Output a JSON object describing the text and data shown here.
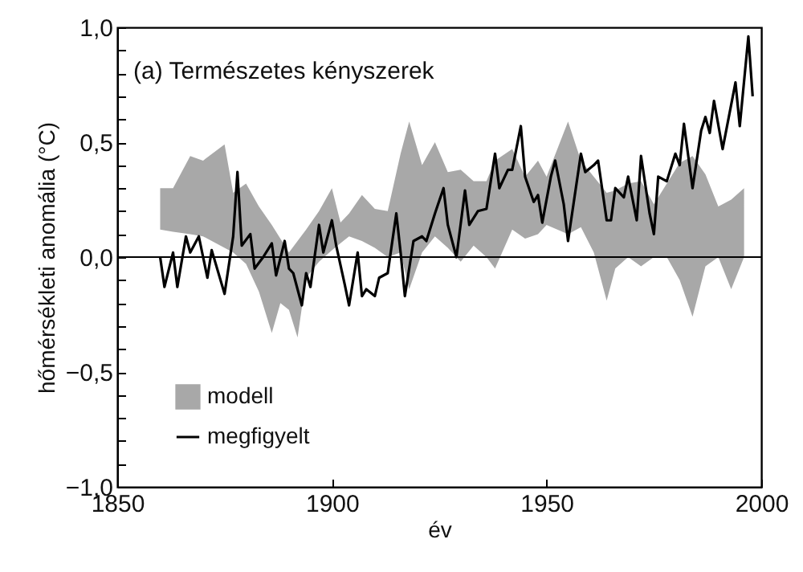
{
  "chart_data": {
    "type": "line",
    "title": "(a) Természetes kényszerek",
    "xlabel": "év",
    "ylabel": "hőmérsékleti anomália (°C)",
    "xlim": [
      1850,
      2000
    ],
    "xticks": [
      1850,
      1900,
      1950,
      2000
    ],
    "ylim": [
      -1,
      1
    ],
    "yticks": [
      {
        "value": -1,
        "label": "−1,0"
      },
      {
        "value": -0.9,
        "label": null
      },
      {
        "value": -0.8,
        "label": null
      },
      {
        "value": -0.7,
        "label": null
      },
      {
        "value": -0.6,
        "label": null
      },
      {
        "value": -0.5,
        "label": "−0,5"
      },
      {
        "value": -0.4,
        "label": null
      },
      {
        "value": -0.3,
        "label": null
      },
      {
        "value": -0.2,
        "label": null
      },
      {
        "value": -0.1,
        "label": null
      },
      {
        "value": 0,
        "label": "0,0"
      },
      {
        "value": 0.1,
        "label": null
      },
      {
        "value": 0.2,
        "label": null
      },
      {
        "value": 0.3,
        "label": null
      },
      {
        "value": 0.4,
        "label": null
      },
      {
        "value": 0.5,
        "label": "0,5"
      },
      {
        "value": 0.6,
        "label": null
      },
      {
        "value": 0.7,
        "label": null
      },
      {
        "value": 0.8,
        "label": null
      },
      {
        "value": 0.9,
        "label": null
      },
      {
        "value": 1,
        "label": "1,0"
      }
    ],
    "grid": false,
    "legend": "bottom left",
    "ref_lines": [
      {
        "axis": "y",
        "value": 0,
        "color": "#000000"
      }
    ],
    "series": [
      {
        "name": "modell",
        "type": "area",
        "color": "#a8a8a8",
        "x": [
          1860,
          1863,
          1867,
          1870,
          1875,
          1877,
          1880,
          1883,
          1886,
          1888,
          1890,
          1892,
          1894,
          1897,
          1900,
          1902,
          1904,
          1907,
          1910,
          1913,
          1916,
          1918,
          1921,
          1924,
          1927,
          1930,
          1933,
          1936,
          1938,
          1942,
          1945,
          1948,
          1950,
          1955,
          1958,
          1961,
          1964,
          1966,
          1969,
          1972,
          1975,
          1978,
          1981,
          1984,
          1987,
          1990,
          1993,
          1996
        ],
        "values": [
          null,
          null,
          null,
          null,
          null,
          null,
          null,
          null,
          null,
          null,
          null,
          null,
          null,
          null,
          null,
          null,
          null,
          null,
          null,
          null,
          null,
          null,
          null,
          null,
          null,
          null,
          null,
          null,
          null,
          null,
          null,
          null,
          null,
          null,
          null,
          null,
          null,
          null,
          null,
          null,
          null,
          null,
          null,
          null,
          null,
          null,
          null,
          null
        ],
        "upper": [
          0.3,
          0.3,
          0.44,
          0.42,
          0.49,
          0.28,
          0.32,
          0.22,
          0.14,
          0.08,
          0.02,
          0.07,
          0.12,
          0.2,
          0.3,
          0.15,
          0.19,
          0.27,
          0.21,
          0.2,
          0.45,
          0.59,
          0.4,
          0.5,
          0.37,
          0.38,
          0.33,
          0.33,
          0.42,
          0.47,
          0.35,
          0.42,
          0.35,
          0.59,
          0.42,
          0.35,
          0.28,
          0.29,
          0.32,
          0.33,
          0.23,
          0.32,
          0.41,
          0.44,
          0.36,
          0.22,
          0.25,
          0.3
        ],
        "lower": [
          0.12,
          0.11,
          0.1,
          0.09,
          0.04,
          0.02,
          -0.03,
          -0.15,
          -0.33,
          -0.2,
          -0.23,
          -0.35,
          -0.09,
          -0.02,
          0.03,
          0.06,
          0.09,
          0.07,
          0.04,
          0.0,
          0.02,
          -0.14,
          0.02,
          0.09,
          0.04,
          -0.02,
          0.05,
          0.0,
          -0.05,
          0.12,
          0.08,
          0.1,
          0.14,
          0.1,
          0.13,
          0.02,
          -0.19,
          -0.05,
          0.0,
          -0.04,
          0.0,
          0.0,
          -0.1,
          -0.26,
          -0.04,
          0.0,
          -0.14,
          0.0
        ]
      },
      {
        "name": "megfigyelt",
        "color": "#000000",
        "x": [
          1860,
          1861,
          1863,
          1864,
          1866,
          1867,
          1869,
          1871,
          1872,
          1875,
          1877,
          1878,
          1879,
          1881,
          1882,
          1884,
          1886,
          1887,
          1889,
          1890,
          1891,
          1893,
          1894,
          1895,
          1897,
          1898,
          1900,
          1901,
          1903,
          1904,
          1906,
          1907,
          1908,
          1910,
          1911,
          1913,
          1915,
          1916,
          1917,
          1919,
          1921,
          1922,
          1924,
          1926,
          1927,
          1929,
          1931,
          1932,
          1934,
          1936,
          1938,
          1939,
          1941,
          1942,
          1944,
          1945,
          1947,
          1948,
          1949,
          1951,
          1952,
          1954,
          1955,
          1958,
          1959,
          1961,
          1962,
          1964,
          1965,
          1966,
          1968,
          1969,
          1971,
          1972,
          1974,
          1975,
          1976,
          1978,
          1980,
          1981,
          1982,
          1984,
          1986,
          1987,
          1988,
          1989,
          1991,
          1994,
          1995,
          1997,
          1998
        ],
        "values": [
          0.0,
          -0.13,
          0.02,
          -0.13,
          0.09,
          0.02,
          0.09,
          -0.09,
          0.03,
          -0.16,
          0.09,
          0.37,
          0.05,
          0.1,
          -0.05,
          0.0,
          0.06,
          -0.08,
          0.07,
          -0.05,
          -0.07,
          -0.21,
          -0.07,
          -0.13,
          0.14,
          0.02,
          0.16,
          0.05,
          -0.12,
          -0.21,
          0.02,
          -0.17,
          -0.14,
          -0.17,
          -0.09,
          -0.07,
          0.19,
          0.02,
          -0.17,
          0.07,
          0.09,
          0.07,
          0.19,
          0.3,
          0.14,
          0.0,
          0.29,
          0.14,
          0.2,
          0.21,
          0.45,
          0.3,
          0.38,
          0.38,
          0.57,
          0.35,
          0.24,
          0.27,
          0.15,
          0.35,
          0.42,
          0.23,
          0.07,
          0.45,
          0.37,
          0.4,
          0.42,
          0.16,
          0.16,
          0.3,
          0.26,
          0.35,
          0.16,
          0.44,
          0.19,
          0.1,
          0.35,
          0.33,
          0.45,
          0.4,
          0.58,
          0.3,
          0.55,
          0.61,
          0.54,
          0.68,
          0.47,
          0.76,
          0.57,
          0.96,
          0.7
        ]
      }
    ]
  }
}
